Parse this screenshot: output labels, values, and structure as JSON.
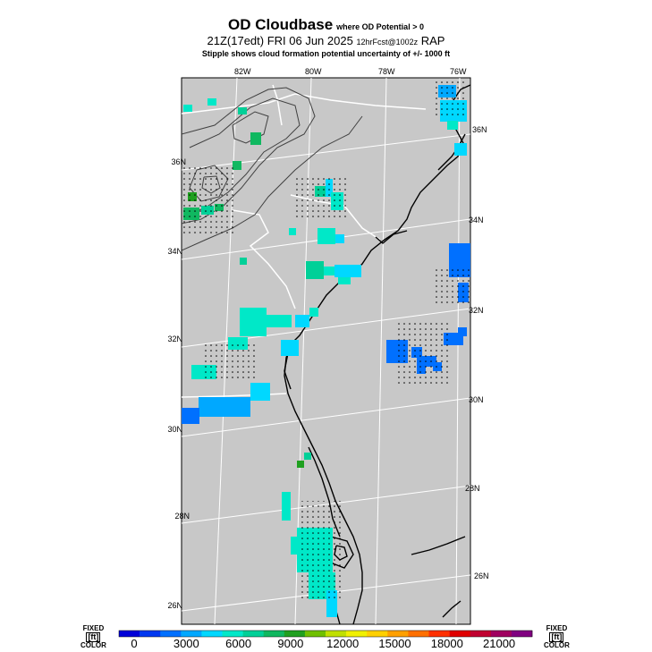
{
  "title": {
    "main": "OD Cloudbase",
    "main_note": "where OD Potential > 0",
    "line2": "21Z(17edt) FRI 06 Jun 2025",
    "line2_note": "12hrFcst@1002z",
    "model": "RAP",
    "line3": "Stipple shows cloud formation potential uncertainty of +/- 1000 ft"
  },
  "map": {
    "lon_labels": [
      "82W",
      "80W",
      "78W",
      "76W"
    ],
    "lat_labels_left": [
      "36N",
      "34N",
      "32N",
      "30N",
      "28N",
      "26N"
    ],
    "lat_labels_right": [
      "36N",
      "34N",
      "32N",
      "30N",
      "28N",
      "26N"
    ],
    "colors": {
      "land": "#c8c8c8",
      "coast": "#000000",
      "border": "#ffffff",
      "contour": "#404040"
    }
  },
  "colorbar": {
    "left_label": [
      "FIXED",
      "[ft]",
      "COLOR"
    ],
    "right_label": [
      "FIXED",
      "[ft]",
      "COLOR"
    ],
    "ticks": [
      "0",
      "3000",
      "6000",
      "9000",
      "12000",
      "15000",
      "18000",
      "21000"
    ],
    "colors": [
      "#0000d8",
      "#0038f0",
      "#0070ff",
      "#00a8ff",
      "#00d8ff",
      "#00e8c8",
      "#00d098",
      "#10b860",
      "#20a020",
      "#70c000",
      "#c0e000",
      "#f0f000",
      "#ffd000",
      "#ffa000",
      "#ff7000",
      "#ff3000",
      "#e00000",
      "#c00030",
      "#a00060",
      "#800080"
    ]
  }
}
